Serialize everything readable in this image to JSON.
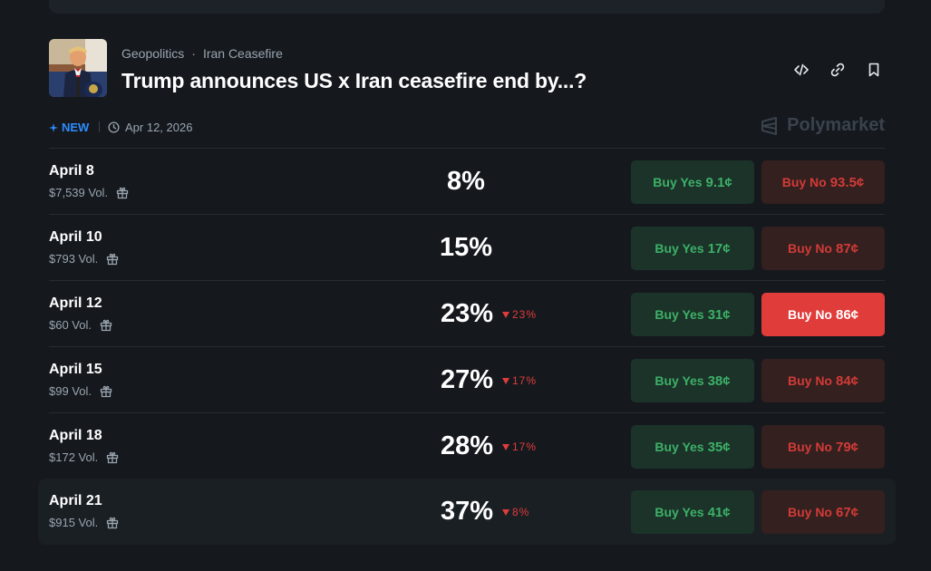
{
  "header": {
    "breadcrumbs": [
      "Geopolitics",
      "Iran Ceasefire"
    ],
    "title": "Trump announces US x Iran ceasefire end by...?",
    "thumbnail": "press-conference-image"
  },
  "meta": {
    "new_label": "NEW",
    "date": "Apr 12, 2026",
    "brand": "Polymarket"
  },
  "colors": {
    "yes": "#3db067",
    "no": "#d23b37",
    "no_active": "#e03c3a",
    "new": "#2d8cff"
  },
  "icons": {
    "embed": "code-icon",
    "link": "link-icon",
    "bookmark": "bookmark-icon",
    "gift": "gift-icon",
    "clock": "clock-icon"
  },
  "rows": [
    {
      "date": "April 8",
      "volume": "$7,539 Vol.",
      "percent": "8%",
      "change": "",
      "yes_label": "Buy Yes",
      "yes_price": "9.1¢",
      "no_label": "Buy No",
      "no_price": "93.5¢",
      "no_active": false,
      "highlighted": false
    },
    {
      "date": "April 10",
      "volume": "$793 Vol.",
      "percent": "15%",
      "change": "",
      "yes_label": "Buy Yes",
      "yes_price": "17¢",
      "no_label": "Buy No",
      "no_price": "87¢",
      "no_active": false,
      "highlighted": false
    },
    {
      "date": "April 12",
      "volume": "$60 Vol.",
      "percent": "23%",
      "change": "23%",
      "yes_label": "Buy Yes",
      "yes_price": "31¢",
      "no_label": "Buy No",
      "no_price": "86¢",
      "no_active": true,
      "highlighted": false
    },
    {
      "date": "April 15",
      "volume": "$99 Vol.",
      "percent": "27%",
      "change": "17%",
      "yes_label": "Buy Yes",
      "yes_price": "38¢",
      "no_label": "Buy No",
      "no_price": "84¢",
      "no_active": false,
      "highlighted": false
    },
    {
      "date": "April 18",
      "volume": "$172 Vol.",
      "percent": "28%",
      "change": "17%",
      "yes_label": "Buy Yes",
      "yes_price": "35¢",
      "no_label": "Buy No",
      "no_price": "79¢",
      "no_active": false,
      "highlighted": false
    },
    {
      "date": "April 21",
      "volume": "$915 Vol.",
      "percent": "37%",
      "change": "8%",
      "yes_label": "Buy Yes",
      "yes_price": "41¢",
      "no_label": "Buy No",
      "no_price": "67¢",
      "no_active": false,
      "highlighted": true
    }
  ]
}
